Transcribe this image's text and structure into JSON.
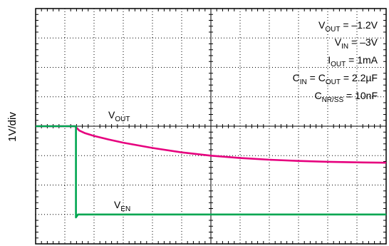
{
  "chart_data": {
    "type": "line",
    "title": "",
    "ylabel": "1V/div",
    "xlabel": "",
    "grid": true,
    "divisions": {
      "x": 12,
      "y": 8
    },
    "colors": {
      "vout": "#e6007e",
      "ven": "#00a651",
      "grid": "#000000"
    },
    "x_units": "div",
    "y_units": "V",
    "xlim": [
      0,
      12
    ],
    "ylim": [
      -4,
      4
    ],
    "series": [
      {
        "label_main": "V",
        "label_sub": "OUT",
        "color": "#e6007e",
        "x": [
          0,
          1.35,
          1.5,
          1.7,
          2.0,
          2.5,
          3.0,
          4.0,
          5.0,
          6.0,
          7.0,
          8.0,
          9.0,
          10.0,
          11.0,
          12.0
        ],
        "y": [
          0,
          0,
          -0.15,
          -0.24,
          -0.33,
          -0.45,
          -0.56,
          -0.74,
          -0.89,
          -1.0,
          -1.08,
          -1.14,
          -1.18,
          -1.21,
          -1.23,
          -1.24
        ]
      },
      {
        "label_main": "V",
        "label_sub": "EN",
        "color": "#00a651",
        "x": [
          0,
          1.38,
          1.38,
          1.45,
          12.0
        ],
        "y": [
          0,
          0,
          -3.1,
          -3.0,
          -3.0
        ]
      }
    ],
    "conditions": [
      {
        "main": "V",
        "sub": "OUT",
        "rest": " = –1.2V"
      },
      {
        "main": "V",
        "sub": "IN",
        "rest": " = –3V"
      },
      {
        "main": "I",
        "sub": "OUT",
        "rest": " = 1mA"
      },
      {
        "main": "C",
        "sub": "IN",
        "mid": " = C",
        "sub2": "OUT",
        "rest": " = 2.2µF"
      },
      {
        "main": "C",
        "sub": "NR/SS",
        "rest": " = 10nF"
      }
    ]
  }
}
